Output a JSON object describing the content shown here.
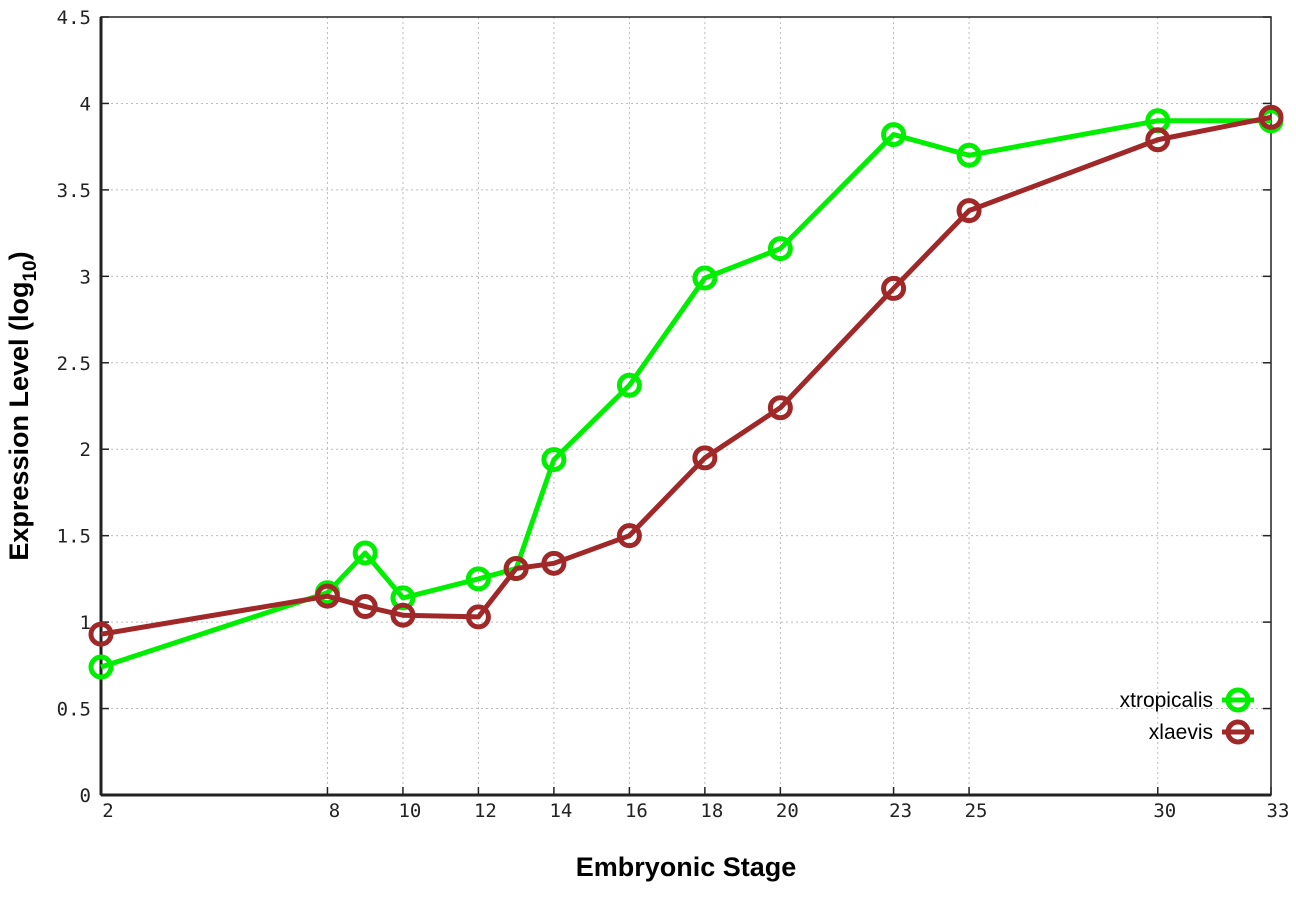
{
  "chart_data": {
    "type": "line",
    "title": "",
    "xlabel": "Embryonic Stage",
    "ylabel": "Expression Level (log",
    "ylabel_sub": "10",
    "ylabel_end": ")",
    "xlim": [
      2,
      33
    ],
    "ylim": [
      0,
      4.5
    ],
    "x_ticks": [
      2,
      8,
      10,
      12,
      14,
      16,
      18,
      20,
      23,
      25,
      30,
      33
    ],
    "y_ticks": [
      0,
      0.5,
      1,
      1.5,
      2,
      2.5,
      3,
      3.5,
      4,
      4.5
    ],
    "y_tick_labels": [
      "0",
      "0.5",
      "1",
      "1.5",
      "2",
      "2.5",
      "3",
      "3.5",
      "4",
      "4.5"
    ],
    "grid": true,
    "legend_position": "bottom-right",
    "series": [
      {
        "name": "xtropicalis",
        "color": "#00ee00",
        "x": [
          2,
          8,
          9,
          10,
          12,
          13,
          14,
          16,
          18,
          20,
          23,
          25,
          30,
          33
        ],
        "values": [
          0.74,
          1.17,
          1.4,
          1.14,
          1.25,
          1.31,
          1.94,
          2.37,
          2.99,
          3.16,
          3.82,
          3.7,
          3.9,
          3.9
        ]
      },
      {
        "name": "xlaevis",
        "color": "#a02828",
        "x": [
          2,
          8,
          9,
          10,
          12,
          13,
          14,
          16,
          18,
          20,
          23,
          25,
          30,
          33
        ],
        "values": [
          0.93,
          1.15,
          1.09,
          1.04,
          1.03,
          1.31,
          1.34,
          1.5,
          1.95,
          2.24,
          2.93,
          3.38,
          3.79,
          3.92
        ]
      }
    ]
  }
}
